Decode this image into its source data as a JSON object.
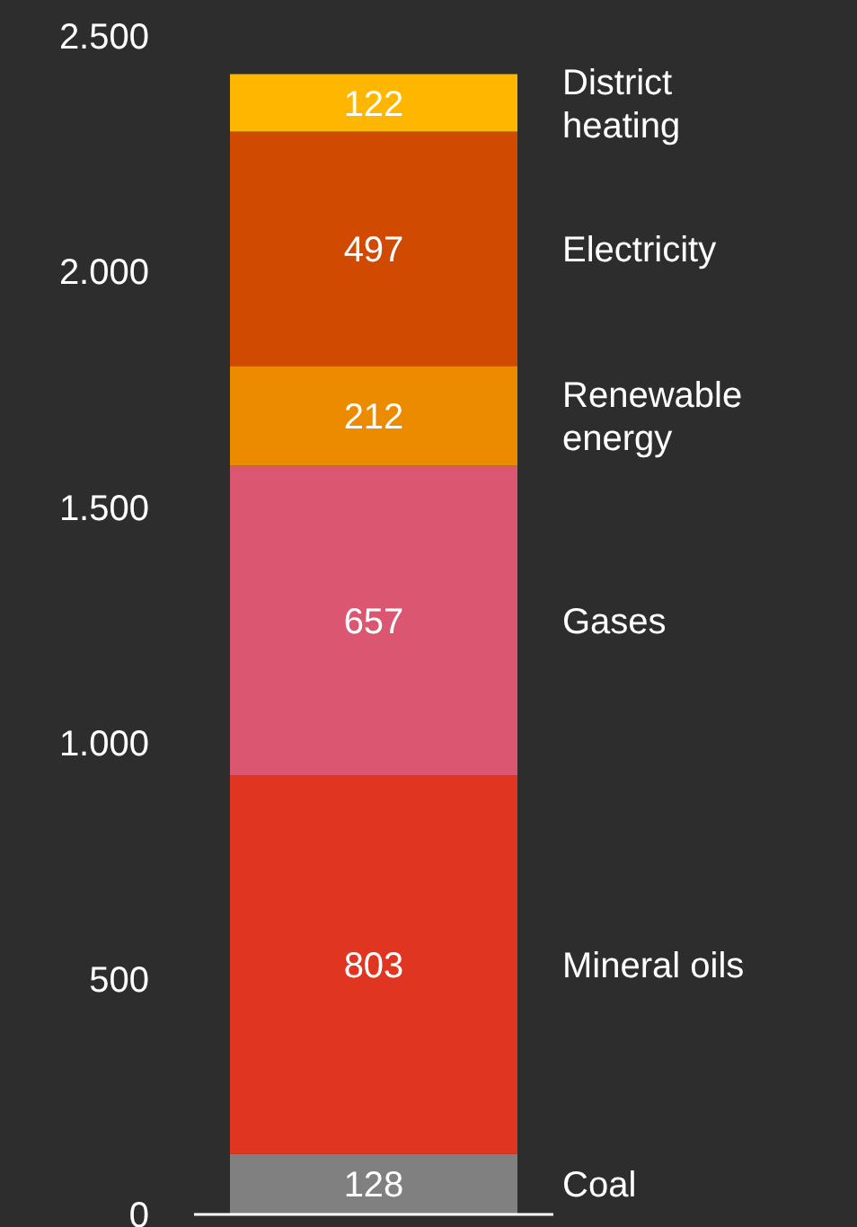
{
  "chart_data": {
    "type": "bar",
    "stacked": true,
    "categories": [
      null
    ],
    "ylim": [
      0,
      2500
    ],
    "yticks": [
      {
        "value": 0,
        "label": "0"
      },
      {
        "value": 500,
        "label": "500"
      },
      {
        "value": 1000,
        "label": "1.000"
      },
      {
        "value": 1500,
        "label": "1.500"
      },
      {
        "value": 2000,
        "label": "2.000"
      },
      {
        "value": 2500,
        "label": "2.500"
      }
    ],
    "series": [
      {
        "name": "Coal",
        "color": "#808080",
        "values": [
          128
        ]
      },
      {
        "name": "Mineral oils",
        "color": "#e03520",
        "values": [
          803
        ]
      },
      {
        "name": "Gases",
        "color": "#db5670",
        "values": [
          657
        ]
      },
      {
        "name": "Renewable energy",
        "color": "#ec8a00",
        "values": [
          212
        ]
      },
      {
        "name": "Electricity",
        "color": "#d04a02",
        "values": [
          497
        ]
      },
      {
        "name": "District heating",
        "color": "#ffb600",
        "values": [
          122
        ]
      }
    ],
    "data_labels": true,
    "grid": false,
    "legend": false
  }
}
